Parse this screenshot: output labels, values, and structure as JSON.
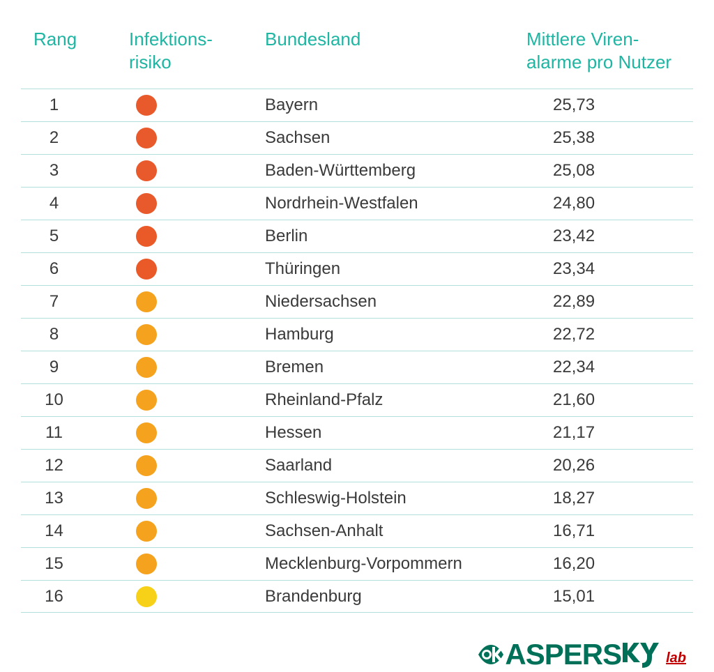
{
  "table": {
    "headers": {
      "rang": "Rang",
      "risk_line1": "Infektions-",
      "risk_line2": "risiko",
      "land": "Bundesland",
      "val_line1": "Mittlere Viren-",
      "val_line2": "alarme pro Nutzer"
    },
    "border_color": "#b0e0d9",
    "header_color": "#1fb5a2",
    "text_color": "#3a3a3a",
    "dot_size": 30,
    "rows": [
      {
        "rang": "1",
        "risk_color": "#e85a2b",
        "land": "Bayern",
        "val": "25,73"
      },
      {
        "rang": "2",
        "risk_color": "#e85a2b",
        "land": "Sachsen",
        "val": "25,38"
      },
      {
        "rang": "3",
        "risk_color": "#e85a2b",
        "land": "Baden-Württemberg",
        "val": "25,08"
      },
      {
        "rang": "4",
        "risk_color": "#e85a2b",
        "land": "Nordrhein-Westfalen",
        "val": "24,80"
      },
      {
        "rang": "5",
        "risk_color": "#ea5a29",
        "land": "Berlin",
        "val": "23,42"
      },
      {
        "rang": "6",
        "risk_color": "#ea5a29",
        "land": "Thüringen",
        "val": "23,34"
      },
      {
        "rang": "7",
        "risk_color": "#f5a21f",
        "land": "Niedersachsen",
        "val": "22,89"
      },
      {
        "rang": "8",
        "risk_color": "#f5a21f",
        "land": "Hamburg",
        "val": "22,72"
      },
      {
        "rang": "9",
        "risk_color": "#f5a21f",
        "land": "Bremen",
        "val": "22,34"
      },
      {
        "rang": "10",
        "risk_color": "#f5a21f",
        "land": "Rheinland-Pfalz",
        "val": "21,60"
      },
      {
        "rang": "11",
        "risk_color": "#f5a21f",
        "land": "Hessen",
        "val": "21,17"
      },
      {
        "rang": "12",
        "risk_color": "#f5a21f",
        "land": "Saarland",
        "val": "20,26"
      },
      {
        "rang": "13",
        "risk_color": "#f5a21f",
        "land": "Schleswig-Holstein",
        "val": "18,27"
      },
      {
        "rang": "14",
        "risk_color": "#f5a21f",
        "land": "Sachsen-Anhalt",
        "val": "16,71"
      },
      {
        "rang": "15",
        "risk_color": "#f5a21f",
        "land": "Mecklenburg-Vorpommern",
        "val": "16,20"
      },
      {
        "rang": "16",
        "risk_color": "#f7d117",
        "land": "Brandenburg",
        "val": "15,01"
      }
    ]
  },
  "logo": {
    "text_main": "ASPERS",
    "text_y": "Y",
    "sub": "lab",
    "main_color": "#007058",
    "sub_color": "#c00000"
  }
}
